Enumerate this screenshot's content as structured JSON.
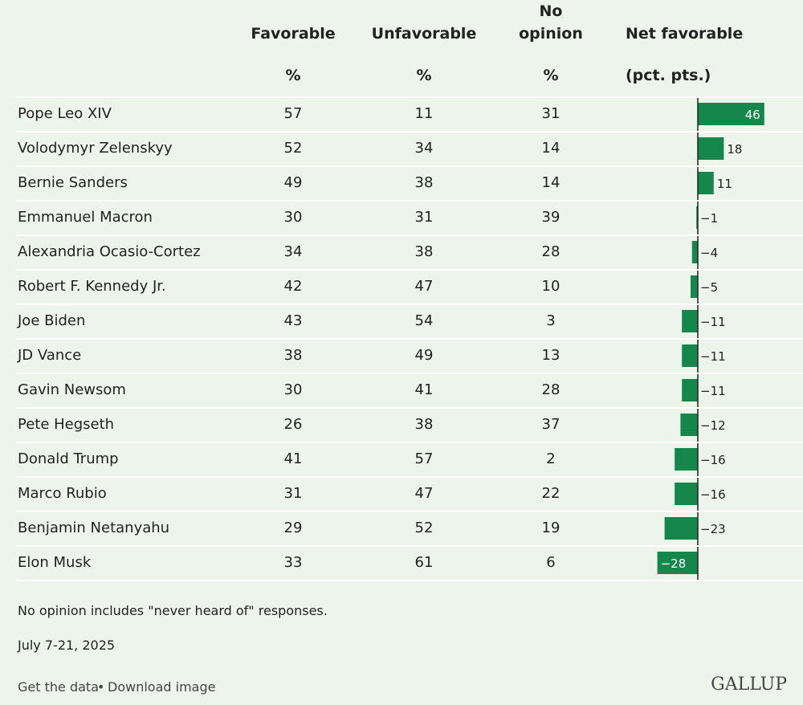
{
  "table": {
    "columns": [
      {
        "title": "Favorable",
        "unit": "%"
      },
      {
        "title": "Unfavorable",
        "unit": "%"
      },
      {
        "title": "No opinion",
        "unit": "%"
      }
    ],
    "net_column": {
      "title": "Net favorable",
      "unit": "(pct. pts.)"
    },
    "rows": [
      {
        "name": "Pope Leo XIV",
        "values": [
          57,
          11,
          31
        ],
        "net": 46
      },
      {
        "name": "Volodymyr Zelenskyy",
        "values": [
          52,
          34,
          14
        ],
        "net": 18
      },
      {
        "name": "Bernie Sanders",
        "values": [
          49,
          38,
          14
        ],
        "net": 11
      },
      {
        "name": "Emmanuel Macron",
        "values": [
          30,
          31,
          39
        ],
        "net": -1,
        "net_label": "−1"
      },
      {
        "name": "Alexandria Ocasio-Cortez",
        "values": [
          34,
          38,
          28
        ],
        "net": -4,
        "net_label": "−4"
      },
      {
        "name": "Robert F. Kennedy Jr.",
        "values": [
          42,
          47,
          10
        ],
        "net": -5,
        "net_label": "−5"
      },
      {
        "name": "Joe Biden",
        "values": [
          43,
          54,
          3
        ],
        "net": -11,
        "net_label": "−11"
      },
      {
        "name": "JD Vance",
        "values": [
          38,
          49,
          13
        ],
        "net": -11,
        "net_label": "−11"
      },
      {
        "name": "Gavin Newsom",
        "values": [
          30,
          41,
          28
        ],
        "net": -11,
        "net_label": "−11"
      },
      {
        "name": "Pete Hegseth",
        "values": [
          26,
          38,
          37
        ],
        "net": -12,
        "net_label": "−12"
      },
      {
        "name": "Donald Trump",
        "values": [
          41,
          57,
          2
        ],
        "net": -16,
        "net_label": "−16"
      },
      {
        "name": "Marco Rubio",
        "values": [
          31,
          47,
          22
        ],
        "net": -16,
        "net_label": "−16"
      },
      {
        "name": "Benjamin Netanyahu",
        "values": [
          29,
          52,
          19
        ],
        "net": -23,
        "net_label": "−23"
      },
      {
        "name": "Elon Musk",
        "values": [
          33,
          61,
          6
        ],
        "net": -28,
        "net_label": "−28"
      }
    ],
    "bar_color": "#15874a"
  },
  "note": "No opinion includes \"never heard of\" responses.",
  "date": "July 7-21, 2025",
  "footer": {
    "links": [
      "Get the data",
      "Download image"
    ],
    "logo": "GALLUP"
  }
}
